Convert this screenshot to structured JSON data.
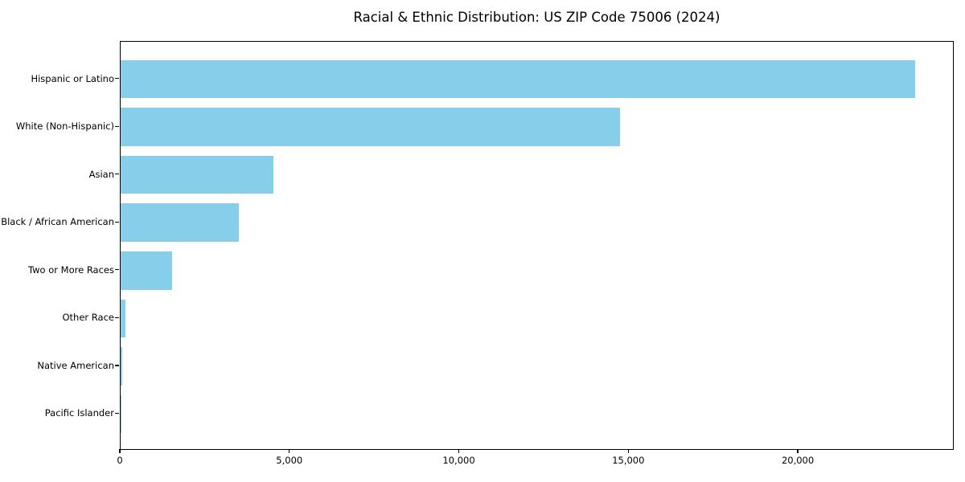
{
  "chart_data": {
    "type": "bar",
    "orientation": "horizontal",
    "title": "Racial & Ethnic Distribution: US ZIP Code 75006 (2024)",
    "categories": [
      "Hispanic or Latino",
      "White (Non-Hispanic)",
      "Asian",
      "Black / African American",
      "Two or More Races",
      "Other Race",
      "Native American",
      "Pacific Islander"
    ],
    "values": [
      23430,
      14720,
      4500,
      3480,
      1510,
      150,
      40,
      10
    ],
    "bar_color": "#87CEEB",
    "text_color": "#000000",
    "background_color": "#ffffff",
    "xlabel": "",
    "ylabel": "",
    "xlim": [
      0,
      24600
    ],
    "x_ticks": [
      {
        "value": 0,
        "label": "0"
      },
      {
        "value": 5000,
        "label": "5,000"
      },
      {
        "value": 10000,
        "label": "10,000"
      },
      {
        "value": 15000,
        "label": "15,000"
      },
      {
        "value": 20000,
        "label": "20,000"
      }
    ],
    "grid": false,
    "legend": "none"
  }
}
